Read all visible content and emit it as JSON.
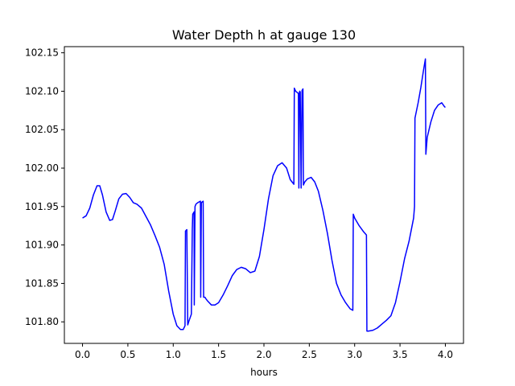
{
  "chart_data": {
    "type": "line",
    "title": "Water Depth h at gauge 130",
    "xlabel": "hours",
    "ylabel": "",
    "xlim": [
      -0.2,
      4.2
    ],
    "ylim": [
      101.772,
      102.158
    ],
    "grid": false,
    "x_ticks": [
      {
        "value": 0.0,
        "label": "0.0"
      },
      {
        "value": 0.5,
        "label": "0.5"
      },
      {
        "value": 1.0,
        "label": "1.0"
      },
      {
        "value": 1.5,
        "label": "1.5"
      },
      {
        "value": 2.0,
        "label": "2.0"
      },
      {
        "value": 2.5,
        "label": "2.5"
      },
      {
        "value": 3.0,
        "label": "3.0"
      },
      {
        "value": 3.5,
        "label": "3.5"
      },
      {
        "value": 4.0,
        "label": "4.0"
      }
    ],
    "y_ticks": [
      {
        "value": 101.8,
        "label": "101.80"
      },
      {
        "value": 101.85,
        "label": "101.85"
      },
      {
        "value": 101.9,
        "label": "101.90"
      },
      {
        "value": 101.95,
        "label": "101.95"
      },
      {
        "value": 102.0,
        "label": "102.00"
      },
      {
        "value": 102.05,
        "label": "102.05"
      },
      {
        "value": 102.1,
        "label": "102.10"
      },
      {
        "value": 102.15,
        "label": "102.15"
      }
    ],
    "series": [
      {
        "color": "#0000ff",
        "x": [
          0.0,
          0.04,
          0.08,
          0.12,
          0.16,
          0.19,
          0.22,
          0.26,
          0.3,
          0.33,
          0.36,
          0.4,
          0.44,
          0.48,
          0.52,
          0.56,
          0.6,
          0.65,
          0.7,
          0.75,
          0.8,
          0.85,
          0.9,
          0.95,
          1.0,
          1.04,
          1.08,
          1.11,
          1.13,
          1.135,
          1.15,
          1.16,
          1.17,
          1.2,
          1.21,
          1.215,
          1.23,
          1.232,
          1.24,
          1.25,
          1.27,
          1.3,
          1.303,
          1.31,
          1.32,
          1.33,
          1.335,
          1.35,
          1.36,
          1.38,
          1.42,
          1.46,
          1.5,
          1.55,
          1.6,
          1.65,
          1.7,
          1.75,
          1.8,
          1.85,
          1.9,
          1.95,
          2.0,
          2.05,
          2.1,
          2.15,
          2.2,
          2.25,
          2.29,
          2.33,
          2.335,
          2.35,
          2.38,
          2.385,
          2.39,
          2.395,
          2.4,
          2.41,
          2.42,
          2.43,
          2.435,
          2.45,
          2.48,
          2.52,
          2.56,
          2.6,
          2.65,
          2.7,
          2.75,
          2.8,
          2.85,
          2.9,
          2.95,
          2.98,
          2.985,
          3.0,
          3.05,
          3.1,
          3.13,
          3.135,
          3.15,
          3.2,
          3.25,
          3.3,
          3.35,
          3.4,
          3.45,
          3.5,
          3.55,
          3.6,
          3.65,
          3.66,
          3.665,
          3.7,
          3.73,
          3.76,
          3.78,
          3.785,
          3.8,
          3.84,
          3.88,
          3.92,
          3.96,
          3.99,
          4.0
        ],
        "values": [
          101.935,
          101.938,
          101.948,
          101.965,
          101.977,
          101.977,
          101.965,
          101.943,
          101.932,
          101.933,
          101.944,
          101.96,
          101.966,
          101.967,
          101.962,
          101.955,
          101.953,
          101.948,
          101.937,
          101.926,
          101.912,
          101.897,
          101.875,
          101.84,
          101.81,
          101.795,
          101.79,
          101.79,
          101.795,
          101.918,
          101.92,
          101.796,
          101.8,
          101.81,
          101.92,
          101.94,
          101.943,
          101.822,
          101.95,
          101.953,
          101.955,
          101.957,
          101.832,
          101.955,
          101.956,
          101.957,
          101.832,
          101.832,
          101.83,
          101.827,
          101.822,
          101.822,
          101.825,
          101.835,
          101.847,
          101.86,
          101.868,
          101.871,
          101.869,
          101.864,
          101.866,
          101.885,
          101.92,
          101.96,
          101.99,
          102.003,
          102.007,
          102.0,
          101.985,
          101.979,
          102.104,
          102.1,
          102.097,
          101.974,
          102.098,
          102.1,
          102.099,
          101.974,
          102.101,
          102.103,
          101.978,
          101.982,
          101.986,
          101.988,
          101.982,
          101.97,
          101.945,
          101.915,
          101.88,
          101.85,
          101.835,
          101.825,
          101.817,
          101.815,
          101.94,
          101.935,
          101.925,
          101.917,
          101.913,
          101.788,
          101.788,
          101.789,
          101.792,
          101.797,
          101.802,
          101.808,
          101.825,
          101.852,
          101.882,
          101.905,
          101.935,
          101.95,
          102.065,
          102.085,
          102.105,
          102.128,
          102.142,
          102.018,
          102.04,
          102.06,
          102.075,
          102.082,
          102.085,
          102.08,
          102.079
        ]
      }
    ]
  }
}
